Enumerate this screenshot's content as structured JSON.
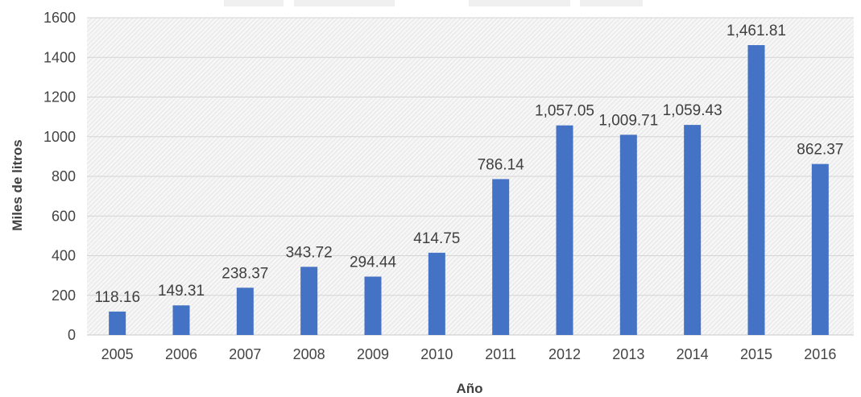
{
  "chart_data": {
    "type": "bar",
    "categories": [
      "2005",
      "2006",
      "2007",
      "2008",
      "2009",
      "2010",
      "2011",
      "2012",
      "2013",
      "2014",
      "2015",
      "2016"
    ],
    "values": [
      118.16,
      149.31,
      238.37,
      343.72,
      294.44,
      414.75,
      786.14,
      1057.05,
      1009.71,
      1059.43,
      1461.81,
      862.37
    ],
    "data_labels": [
      "118.16",
      "149.31",
      "238.37",
      "343.72",
      "294.44",
      "414.75",
      "786.14",
      "1,057.05",
      "1,009.71",
      "1,059.43",
      "1,461.81",
      "862.37"
    ],
    "xlabel": "Año",
    "ylabel": "Miles de litros",
    "ylim": [
      0,
      1600
    ],
    "yticks": [
      0,
      200,
      400,
      600,
      800,
      1000,
      1200,
      1400,
      1600
    ],
    "grid": true,
    "bar_color": "#4472c4",
    "background": "hatched light gray"
  }
}
